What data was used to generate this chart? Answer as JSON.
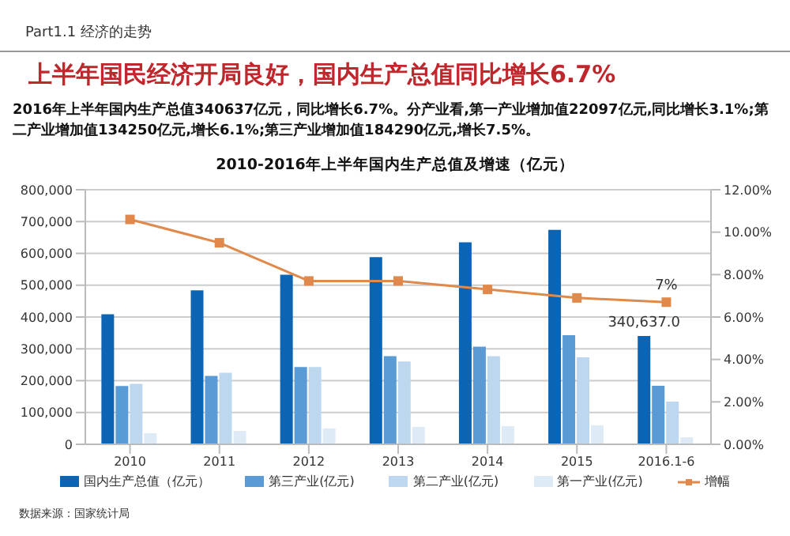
{
  "chart_data": {
    "type": "bar",
    "title": "2010-2016年上半年国内生产总值及增速（亿元）",
    "annotations": [
      "Part1.1 经济的走势",
      "上半年国民经济开局良好，国内生产总值同比增长6.7%",
      "2016年上半年国内生产总值340637亿元，同比增长6.7%。分产业看,第一产业增加值22097亿元,同比增长3.1%;第二产业增加值134250亿元,增长6.1%;第三产业增加值184290亿元,增长7.5%。",
      "数据来源：国家统计局"
    ],
    "categories": [
      "2010",
      "2011",
      "2012",
      "2013",
      "2014",
      "2015",
      "2016.1-6"
    ],
    "series": [
      {
        "name": "国内生产总值（亿元）",
        "color": "#0b64b4",
        "values": [
          409000,
          484000,
          533000,
          588000,
          635000,
          674000,
          340637
        ],
        "value_labels": [
          null,
          null,
          null,
          null,
          null,
          null,
          "340,637.0"
        ]
      },
      {
        "name": "第三产业(亿元)",
        "color": "#5b9bd5",
        "values": [
          183000,
          215000,
          243000,
          277000,
          307000,
          343000,
          184000
        ]
      },
      {
        "name": "第二产业(亿元)",
        "color": "#bdd7ee",
        "values": [
          190000,
          225000,
          243000,
          260000,
          277000,
          273000,
          134000
        ]
      },
      {
        "name": "第一产业(亿元)",
        "color": "#deebf7",
        "values": [
          35000,
          42000,
          50000,
          55000,
          57000,
          60000,
          22000
        ]
      },
      {
        "name": "增幅",
        "type": "line",
        "axis": "y2",
        "color": "#e0894a",
        "marker": "square",
        "values": [
          10.6,
          9.5,
          7.7,
          7.7,
          7.3,
          6.9,
          6.7
        ],
        "value_labels": [
          null,
          null,
          null,
          null,
          null,
          null,
          "7%"
        ]
      }
    ],
    "ylim": [
      0,
      800000
    ],
    "yticks": [
      {
        "value": 0,
        "label": "0"
      },
      {
        "value": 100000,
        "label": "100,000"
      },
      {
        "value": 200000,
        "label": "200,000"
      },
      {
        "value": 300000,
        "label": "300,000"
      },
      {
        "value": 400000,
        "label": "400,000"
      },
      {
        "value": 500000,
        "label": "500,000"
      },
      {
        "value": 600000,
        "label": "600,000"
      },
      {
        "value": 700000,
        "label": "700,000"
      },
      {
        "value": 800000,
        "label": "800,000"
      }
    ],
    "y2lim": [
      0,
      12
    ],
    "y2ticks": [
      {
        "value": 0,
        "label": "0.00%"
      },
      {
        "value": 2,
        "label": "2.00%"
      },
      {
        "value": 4,
        "label": "4.00%"
      },
      {
        "value": 6,
        "label": "6.00%"
      },
      {
        "value": 8,
        "label": "8.00%"
      },
      {
        "value": 10,
        "label": "10.00%"
      },
      {
        "value": 12,
        "label": "12.00%"
      }
    ],
    "grid": "y",
    "legend": "bottom"
  }
}
